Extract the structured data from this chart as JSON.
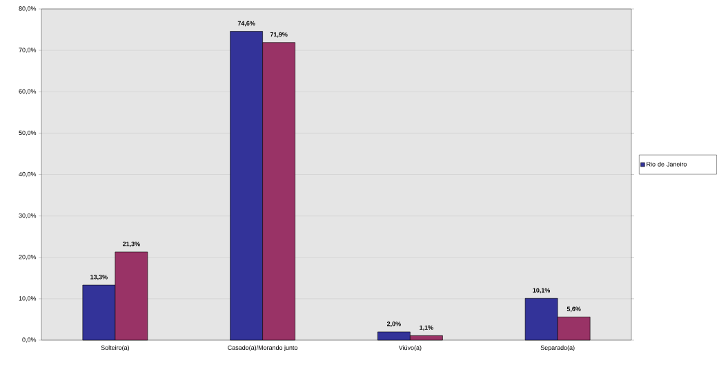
{
  "chart_data": {
    "type": "bar",
    "categories": [
      "Solteiro(a)",
      "Casado(a)/Morando junto",
      "Viúvo(a)",
      "Separado(a)"
    ],
    "series": [
      {
        "name": "Rio de Janeiro",
        "color": "#333399",
        "values": [
          13.3,
          74.6,
          2.0,
          10.1
        ],
        "value_labels": [
          "13,3%",
          "74,6%",
          "2,0%",
          "10,1%"
        ]
      },
      {
        "color": "#993366",
        "values": [
          21.3,
          71.9,
          1.1,
          5.6
        ],
        "value_labels": [
          "21,3%",
          "71,9%",
          "1,1%",
          "5,6%"
        ]
      }
    ],
    "ylim": [
      0,
      80
    ],
    "yticks": [
      {
        "value": 0,
        "label": "0,0%"
      },
      {
        "value": 10,
        "label": "10,0%"
      },
      {
        "value": 20,
        "label": "20,0%"
      },
      {
        "value": 30,
        "label": "30,0%"
      },
      {
        "value": 40,
        "label": "40,0%"
      },
      {
        "value": 50,
        "label": "50,0%"
      },
      {
        "value": 60,
        "label": "60,0%"
      },
      {
        "value": 70,
        "label": "70,0%"
      },
      {
        "value": 80,
        "label": "80,0%"
      }
    ],
    "grid": "y",
    "legend": "right"
  }
}
